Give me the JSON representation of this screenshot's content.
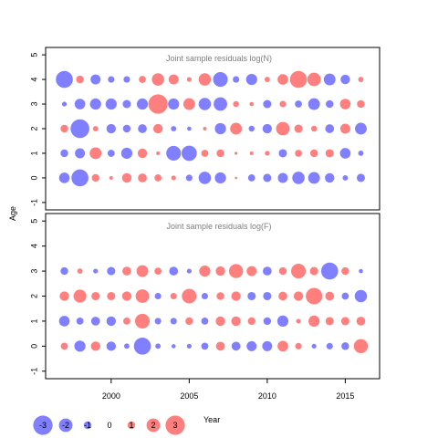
{
  "chart_data": [
    {
      "type": "scatter",
      "title": "Joint sample residuals log(N)",
      "ylabel": "Age",
      "ylim": [
        -1.3,
        5.3
      ],
      "yticks": [
        -1,
        0,
        1,
        2,
        3,
        4,
        5
      ],
      "years": [
        1997,
        1998,
        1999,
        2000,
        2001,
        2002,
        2003,
        2004,
        2005,
        2006,
        2007,
        2008,
        2009,
        2010,
        2011,
        2012,
        2013,
        2014,
        2015,
        2016
      ],
      "ages": [
        0,
        1,
        2,
        3,
        4
      ],
      "residuals": [
        [
          -1.5,
          -2.6,
          1.0,
          0.3,
          1.3,
          1.2,
          0.9,
          0.5,
          -0.8,
          -1.8,
          -1.6,
          0.1,
          -0.9,
          -1.1,
          -1.4,
          -1.8,
          -1.7,
          -1.3,
          -0.6,
          -1.1
        ],
        [
          -1.0,
          -1.4,
          1.7,
          -0.9,
          -1.6,
          1.3,
          0.3,
          -2.2,
          -2.3,
          0.9,
          1.0,
          0.2,
          0.3,
          0.5,
          -1.1,
          0.9,
          1.0,
          1.1,
          -1.5,
          -0.6
        ],
        [
          1.0,
          -2.9,
          0.6,
          -1.3,
          -1.0,
          -1.2,
          1.3,
          -0.6,
          -0.4,
          0.3,
          -1.6,
          1.7,
          -0.7,
          -1.3,
          2.0,
          1.1,
          0.7,
          -1.2,
          1.4,
          -1.7
        ],
        [
          -0.5,
          -1.5,
          -1.6,
          -1.6,
          -1.1,
          -1.6,
          3.0,
          -1.6,
          1.7,
          -1.8,
          -2.0,
          0.7,
          0.4,
          -1.1,
          0.8,
          -0.9,
          -1.7,
          -1.0,
          1.5,
          1.0
        ],
        [
          -2.6,
          1.0,
          -1.4,
          -0.8,
          -0.8,
          0.9,
          1.8,
          1.4,
          0.5,
          1.8,
          -2.2,
          -0.8,
          -1.6,
          0.6,
          1.5,
          2.6,
          2.0,
          -1.7,
          -1.3,
          0.6
        ]
      ]
    },
    {
      "type": "scatter",
      "title": "Joint sample residuals log(F)",
      "xlabel": "Year",
      "ylim": [
        -1.3,
        5.3
      ],
      "yticks": [
        -1,
        0,
        1,
        2,
        3,
        4,
        5
      ],
      "xlim": [
        1995.8,
        2017.2
      ],
      "xticks": [
        2000,
        2005,
        2010,
        2015
      ],
      "years": [
        1997,
        1998,
        1999,
        2000,
        2001,
        2002,
        2003,
        2004,
        2005,
        2006,
        2007,
        2008,
        2009,
        2010,
        2011,
        2012,
        2013,
        2014,
        2015,
        2016
      ],
      "ages": [
        0,
        1,
        2,
        3
      ],
      "residuals": [
        [
          0.9,
          -1.6,
          1.3,
          -1.3,
          -0.6,
          -2.6,
          -0.6,
          -0.4,
          -0.5,
          -0.9,
          1.2,
          -1.2,
          -1.4,
          -1.4,
          1.5,
          0.8,
          -0.5,
          -0.8,
          -1.0,
          2.1
        ],
        [
          -1.5,
          -0.9,
          -1.2,
          -1.3,
          0.9,
          2.2,
          -0.8,
          -0.8,
          1.0,
          -0.9,
          1.3,
          1.3,
          1.0,
          -1.0,
          -1.6,
          0.5,
          1.6,
          1.1,
          1.1,
          1.2
        ],
        [
          1.3,
          1.9,
          1.1,
          1.1,
          1.3,
          2.0,
          -0.8,
          0.8,
          2.2,
          -0.8,
          1.0,
          1.3,
          -1.1,
          -1.1,
          1.2,
          1.3,
          2.5,
          1.2,
          -0.9,
          -1.8
        ],
        [
          -1.0,
          0.6,
          -0.5,
          -1.1,
          1.2,
          1.7,
          0.9,
          -1.2,
          -0.5,
          1.6,
          1.3,
          2.1,
          1.4,
          -1.2,
          1.0,
          2.2,
          1.1,
          -2.6,
          1.0,
          -0.4
        ]
      ]
    }
  ],
  "legend": {
    "labels": [
      "-3",
      "-2",
      "-1",
      "0",
      "1",
      "2",
      "3"
    ],
    "values": [
      -3,
      -2,
      -1,
      0,
      1,
      2,
      3
    ]
  },
  "colors": {
    "positive": "#ff0000",
    "negative": "#0000ff",
    "opacity": 0.5
  }
}
